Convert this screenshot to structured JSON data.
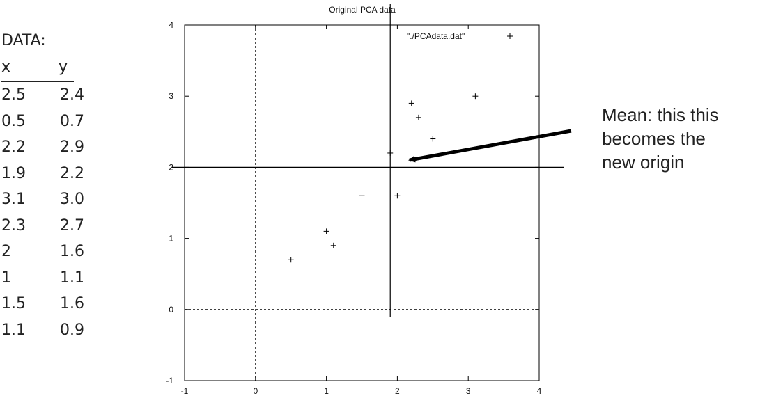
{
  "table": {
    "title": "DATA:",
    "headers": {
      "x": "x",
      "y": "y"
    },
    "rows": [
      {
        "x": "2.5",
        "y": "2.4"
      },
      {
        "x": "0.5",
        "y": "0.7"
      },
      {
        "x": "2.2",
        "y": "2.9"
      },
      {
        "x": "1.9",
        "y": "2.2"
      },
      {
        "x": "3.1",
        "y": "3.0"
      },
      {
        "x": "2.3",
        "y": "2.7"
      },
      {
        "x": "2",
        "y": "1.6"
      },
      {
        "x": "1",
        "y": "1.1"
      },
      {
        "x": "1.5",
        "y": "1.6"
      },
      {
        "x": "1.1",
        "y": "0.9"
      }
    ]
  },
  "annotation": {
    "line1": "Mean: this this",
    "line2": "becomes the",
    "line3": "new origin"
  },
  "chart_data": {
    "type": "scatter",
    "title": "Original PCA data",
    "legend": {
      "label": "\"./PCAdata.dat\"",
      "placement": "top-right",
      "marker": "+"
    },
    "xlim": [
      -1,
      4
    ],
    "ylim": [
      -1,
      4
    ],
    "xticks": [
      "-1",
      "0",
      "1",
      "2",
      "3",
      "4"
    ],
    "yticks": [
      "-1",
      "0",
      "1",
      "2",
      "3",
      "4"
    ],
    "series": [
      {
        "name": "\"./PCAdata.dat\"",
        "marker": "+",
        "points": [
          [
            2.5,
            2.4
          ],
          [
            0.5,
            0.7
          ],
          [
            2.2,
            2.9
          ],
          [
            1.9,
            2.2
          ],
          [
            3.1,
            3.0
          ],
          [
            2.3,
            2.7
          ],
          [
            2,
            1.6
          ],
          [
            1,
            1.1
          ],
          [
            1.5,
            1.6
          ],
          [
            1.1,
            0.9
          ]
        ]
      }
    ],
    "zero_axes": {
      "style": "dashed",
      "x": 0,
      "y": 0
    },
    "mean_axes": {
      "style": "solid",
      "x": 1.9,
      "y": 2.0
    },
    "annotation_arrow_target": [
      2.2,
      2.05
    ]
  }
}
